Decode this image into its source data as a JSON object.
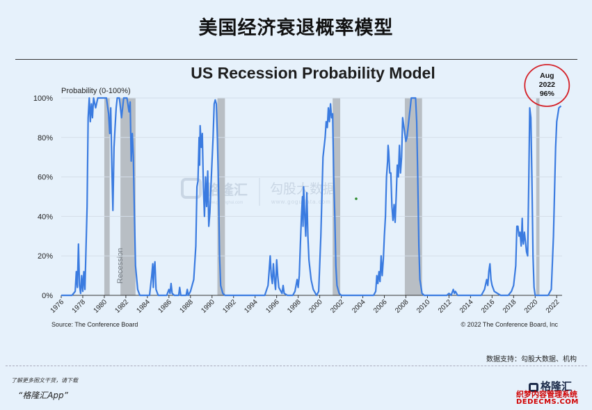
{
  "page": {
    "title": "美国经济衰退概率模型",
    "credit": "数据支持：勾股大数据、机构",
    "app_note": "了解更多图文干货，请下载",
    "app_name": "“格隆汇App”",
    "brand_logo": "格隆汇",
    "brand_site": "织梦内容管理系统",
    "brand_url": "DEDECMS.COM"
  },
  "watermark": {
    "left_cn": "格隆汇",
    "left_en": "www.gelonghui.com",
    "right_cn": "勾股大数据",
    "right_en": "www.gogudata.com"
  },
  "colors": {
    "line": "#3a7be0",
    "recession": "#b8bec4",
    "circle": "#d42027",
    "axis": "#333333"
  },
  "chart_data": {
    "type": "line",
    "title": "US Recession Probability Model",
    "ylabel": "Probability (0-100%)",
    "xlim": [
      1976,
      2022.5
    ],
    "ylim": [
      0,
      100
    ],
    "yticks": [
      0,
      20,
      40,
      60,
      80,
      100
    ],
    "ytick_labels": [
      "0%",
      "20%",
      "40%",
      "60%",
      "80%",
      "100%"
    ],
    "xticks": [
      1976,
      1978,
      1980,
      1982,
      1984,
      1986,
      1988,
      1990,
      1992,
      1994,
      1996,
      1998,
      2000,
      2002,
      2004,
      2006,
      2008,
      2010,
      2012,
      2014,
      2016,
      2018,
      2020,
      2022
    ],
    "recession_label": "Recession",
    "recessions": [
      [
        1980.0,
        1980.5
      ],
      [
        1981.5,
        1982.9
      ],
      [
        1990.5,
        1991.2
      ],
      [
        2001.2,
        2001.9
      ],
      [
        2007.9,
        2009.5
      ],
      [
        2020.1,
        2020.4
      ]
    ],
    "annotation": {
      "x": 2022.6,
      "y": 96,
      "lines": [
        "Aug",
        "2022",
        "96%"
      ]
    },
    "source": "Source: The Conference Board",
    "copyright": "© 2022 The Conference Board, Inc",
    "series": [
      {
        "name": "Recession probability",
        "points": [
          [
            1976.0,
            0
          ],
          [
            1977.0,
            0
          ],
          [
            1977.3,
            2
          ],
          [
            1977.4,
            12
          ],
          [
            1977.5,
            4
          ],
          [
            1977.6,
            26
          ],
          [
            1977.7,
            5
          ],
          [
            1977.8,
            1
          ],
          [
            1977.9,
            10
          ],
          [
            1978.0,
            2
          ],
          [
            1978.1,
            12
          ],
          [
            1978.2,
            3
          ],
          [
            1978.4,
            45
          ],
          [
            1978.5,
            90
          ],
          [
            1978.6,
            100
          ],
          [
            1978.7,
            88
          ],
          [
            1978.8,
            97
          ],
          [
            1978.9,
            90
          ],
          [
            1979.0,
            100
          ],
          [
            1979.2,
            95
          ],
          [
            1979.4,
            100
          ],
          [
            1980.2,
            100
          ],
          [
            1980.4,
            92
          ],
          [
            1980.5,
            82
          ],
          [
            1980.6,
            95
          ],
          [
            1980.7,
            65
          ],
          [
            1980.8,
            43
          ],
          [
            1980.9,
            75
          ],
          [
            1981.0,
            85
          ],
          [
            1981.1,
            95
          ],
          [
            1981.2,
            100
          ],
          [
            1981.4,
            100
          ],
          [
            1981.6,
            90
          ],
          [
            1981.8,
            100
          ],
          [
            1982.1,
            100
          ],
          [
            1982.3,
            93
          ],
          [
            1982.4,
            98
          ],
          [
            1982.5,
            68
          ],
          [
            1982.6,
            82
          ],
          [
            1982.7,
            70
          ],
          [
            1982.8,
            40
          ],
          [
            1982.9,
            15
          ],
          [
            1983.1,
            3
          ],
          [
            1983.3,
            0
          ],
          [
            1984.2,
            0
          ],
          [
            1984.4,
            10
          ],
          [
            1984.5,
            16
          ],
          [
            1984.55,
            4
          ],
          [
            1984.6,
            12
          ],
          [
            1984.7,
            17
          ],
          [
            1984.8,
            3
          ],
          [
            1985.0,
            0
          ],
          [
            1985.8,
            0
          ],
          [
            1986.0,
            3
          ],
          [
            1986.1,
            1
          ],
          [
            1986.2,
            6
          ],
          [
            1986.3,
            1
          ],
          [
            1986.5,
            0
          ],
          [
            1986.9,
            0
          ],
          [
            1987.0,
            4
          ],
          [
            1987.1,
            0
          ],
          [
            1987.6,
            0
          ],
          [
            1987.7,
            3
          ],
          [
            1987.8,
            0
          ],
          [
            1988.0,
            2
          ],
          [
            1988.3,
            8
          ],
          [
            1988.5,
            25
          ],
          [
            1988.6,
            55
          ],
          [
            1988.7,
            58
          ],
          [
            1988.8,
            80
          ],
          [
            1988.85,
            66
          ],
          [
            1988.9,
            86
          ],
          [
            1989.0,
            75
          ],
          [
            1989.1,
            82
          ],
          [
            1989.2,
            55
          ],
          [
            1989.3,
            40
          ],
          [
            1989.4,
            60
          ],
          [
            1989.5,
            45
          ],
          [
            1989.6,
            63
          ],
          [
            1989.7,
            35
          ],
          [
            1989.8,
            42
          ],
          [
            1989.9,
            55
          ],
          [
            1990.0,
            68
          ],
          [
            1990.1,
            80
          ],
          [
            1990.2,
            97
          ],
          [
            1990.3,
            99
          ],
          [
            1990.4,
            97
          ],
          [
            1990.5,
            80
          ],
          [
            1990.6,
            55
          ],
          [
            1990.7,
            20
          ],
          [
            1990.8,
            5
          ],
          [
            1991.0,
            1
          ],
          [
            1991.2,
            0
          ],
          [
            1994.9,
            0
          ],
          [
            1995.2,
            5
          ],
          [
            1995.3,
            12
          ],
          [
            1995.4,
            20
          ],
          [
            1995.5,
            10
          ],
          [
            1995.6,
            6
          ],
          [
            1995.7,
            16
          ],
          [
            1995.8,
            8
          ],
          [
            1995.9,
            3
          ],
          [
            1996.0,
            18
          ],
          [
            1996.1,
            10
          ],
          [
            1996.2,
            4
          ],
          [
            1996.5,
            1
          ],
          [
            1996.6,
            5
          ],
          [
            1996.7,
            1
          ],
          [
            1997.0,
            0
          ],
          [
            1997.5,
            0
          ],
          [
            1997.7,
            2
          ],
          [
            1997.9,
            8
          ],
          [
            1998.0,
            4
          ],
          [
            1998.1,
            10
          ],
          [
            1998.2,
            25
          ],
          [
            1998.3,
            40
          ],
          [
            1998.4,
            50
          ],
          [
            1998.45,
            35
          ],
          [
            1998.5,
            55
          ],
          [
            1998.6,
            42
          ],
          [
            1998.7,
            30
          ],
          [
            1998.8,
            52
          ],
          [
            1998.9,
            30
          ],
          [
            1999.0,
            18
          ],
          [
            1999.2,
            8
          ],
          [
            1999.4,
            3
          ],
          [
            1999.7,
            0
          ],
          [
            1999.9,
            2
          ],
          [
            2000.1,
            30
          ],
          [
            2000.3,
            70
          ],
          [
            2000.5,
            80
          ],
          [
            2000.6,
            88
          ],
          [
            2000.7,
            85
          ],
          [
            2000.8,
            95
          ],
          [
            2000.9,
            88
          ],
          [
            2001.0,
            97
          ],
          [
            2001.1,
            90
          ],
          [
            2001.2,
            92
          ],
          [
            2001.3,
            60
          ],
          [
            2001.4,
            40
          ],
          [
            2001.5,
            15
          ],
          [
            2001.6,
            5
          ],
          [
            2001.8,
            1
          ],
          [
            2002.0,
            0
          ],
          [
            2005.0,
            0
          ],
          [
            2005.2,
            2
          ],
          [
            2005.3,
            10
          ],
          [
            2005.4,
            6
          ],
          [
            2005.5,
            12
          ],
          [
            2005.6,
            7
          ],
          [
            2005.7,
            20
          ],
          [
            2005.8,
            10
          ],
          [
            2005.9,
            18
          ],
          [
            2006.0,
            30
          ],
          [
            2006.1,
            40
          ],
          [
            2006.2,
            60
          ],
          [
            2006.3,
            68
          ],
          [
            2006.35,
            76
          ],
          [
            2006.4,
            73
          ],
          [
            2006.5,
            62
          ],
          [
            2006.6,
            62
          ],
          [
            2006.7,
            45
          ],
          [
            2006.8,
            38
          ],
          [
            2006.9,
            46
          ],
          [
            2007.0,
            37
          ],
          [
            2007.1,
            50
          ],
          [
            2007.2,
            66
          ],
          [
            2007.3,
            60
          ],
          [
            2007.4,
            76
          ],
          [
            2007.5,
            62
          ],
          [
            2007.6,
            70
          ],
          [
            2007.7,
            90
          ],
          [
            2007.8,
            86
          ],
          [
            2007.9,
            82
          ],
          [
            2008.0,
            78
          ],
          [
            2008.1,
            80
          ],
          [
            2008.2,
            85
          ],
          [
            2008.3,
            90
          ],
          [
            2008.4,
            95
          ],
          [
            2008.5,
            100
          ],
          [
            2008.9,
            100
          ],
          [
            2009.0,
            88
          ],
          [
            2009.1,
            60
          ],
          [
            2009.2,
            25
          ],
          [
            2009.3,
            8
          ],
          [
            2009.5,
            1
          ],
          [
            2009.7,
            0
          ],
          [
            2011.8,
            0
          ],
          [
            2012.0,
            1
          ],
          [
            2012.2,
            0
          ],
          [
            2012.4,
            3
          ],
          [
            2012.5,
            1
          ],
          [
            2012.6,
            2
          ],
          [
            2012.8,
            0
          ],
          [
            2015.0,
            0
          ],
          [
            2015.3,
            3
          ],
          [
            2015.5,
            8
          ],
          [
            2015.6,
            5
          ],
          [
            2015.7,
            12
          ],
          [
            2015.8,
            16
          ],
          [
            2015.9,
            8
          ],
          [
            2016.0,
            5
          ],
          [
            2016.2,
            2
          ],
          [
            2016.5,
            1
          ],
          [
            2016.8,
            0
          ],
          [
            2017.5,
            0
          ],
          [
            2017.8,
            2
          ],
          [
            2018.0,
            5
          ],
          [
            2018.2,
            15
          ],
          [
            2018.3,
            35
          ],
          [
            2018.4,
            35
          ],
          [
            2018.5,
            30
          ],
          [
            2018.6,
            32
          ],
          [
            2018.7,
            25
          ],
          [
            2018.8,
            39
          ],
          [
            2018.85,
            28
          ],
          [
            2018.9,
            26
          ],
          [
            2019.0,
            32
          ],
          [
            2019.1,
            27
          ],
          [
            2019.2,
            22
          ],
          [
            2019.3,
            20
          ],
          [
            2019.4,
            55
          ],
          [
            2019.5,
            95
          ],
          [
            2019.6,
            90
          ],
          [
            2019.7,
            60
          ],
          [
            2019.8,
            20
          ],
          [
            2019.9,
            4
          ],
          [
            2020.0,
            0
          ],
          [
            2021.2,
            0
          ],
          [
            2021.5,
            3
          ],
          [
            2021.7,
            30
          ],
          [
            2021.9,
            75
          ],
          [
            2022.0,
            88
          ],
          [
            2022.2,
            95
          ],
          [
            2022.4,
            96
          ]
        ]
      }
    ]
  }
}
